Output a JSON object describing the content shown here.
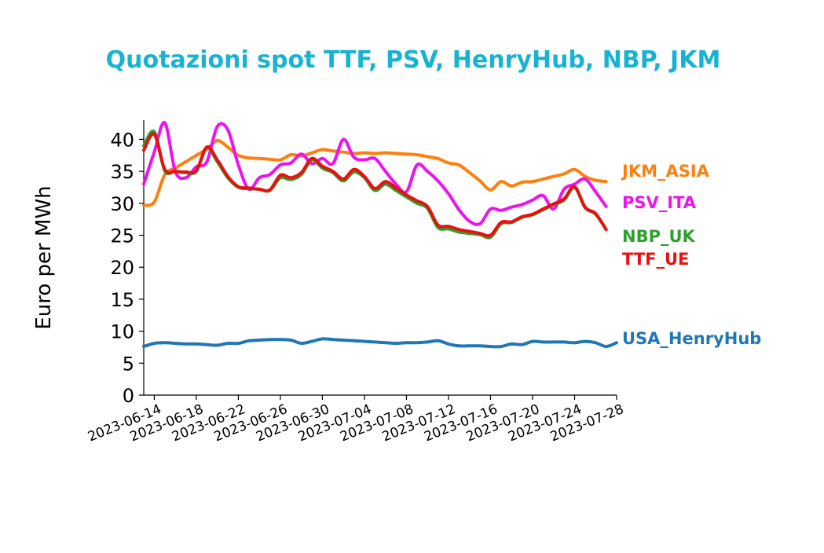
{
  "chart_data": {
    "type": "line",
    "title": "Quotazioni spot TTF, PSV, HenryHub, NBP, JKM",
    "title_color": "#17b3d1",
    "xlabel": "",
    "ylabel": "Euro per MWh",
    "ylim": [
      0,
      43
    ],
    "xlim": [
      "2023-06-13",
      "2023-07-28"
    ],
    "yticks": [
      0,
      5,
      10,
      15,
      20,
      25,
      30,
      35,
      40
    ],
    "xticks": [
      "2023-06-14",
      "2023-06-18",
      "2023-06-22",
      "2023-06-26",
      "2023-06-30",
      "2023-07-04",
      "2023-07-08",
      "2023-07-12",
      "2023-07-16",
      "2023-07-20",
      "2023-07-24",
      "2023-07-28"
    ],
    "grid": false,
    "legend": "right (labels next to series)",
    "series": [
      {
        "name": "JKM_ASIA",
        "color": "#ff7f0e",
        "points": [
          [
            "2023-06-13",
            29.7
          ],
          [
            "2023-06-14",
            30.2
          ],
          [
            "2023-06-15",
            34.5
          ],
          [
            "2023-06-16",
            35.5
          ],
          [
            "2023-06-17",
            36.5
          ],
          [
            "2023-06-18",
            37.5
          ],
          [
            "2023-06-19",
            38.5
          ],
          [
            "2023-06-20",
            39.8
          ],
          [
            "2023-06-21",
            38.8
          ],
          [
            "2023-06-22",
            37.5
          ],
          [
            "2023-06-23",
            37.1
          ],
          [
            "2023-06-24",
            37.0
          ],
          [
            "2023-06-25",
            36.9
          ],
          [
            "2023-06-26",
            36.8
          ],
          [
            "2023-06-27",
            37.6
          ],
          [
            "2023-06-28",
            37.4
          ],
          [
            "2023-06-29",
            37.9
          ],
          [
            "2023-06-30",
            38.4
          ],
          [
            "2023-07-01",
            38.2
          ],
          [
            "2023-07-02",
            38.0
          ],
          [
            "2023-07-03",
            37.8
          ],
          [
            "2023-07-04",
            37.9
          ],
          [
            "2023-07-05",
            37.8
          ],
          [
            "2023-07-06",
            37.9
          ],
          [
            "2023-07-07",
            37.8
          ],
          [
            "2023-07-08",
            37.7
          ],
          [
            "2023-07-09",
            37.6
          ],
          [
            "2023-07-10",
            37.3
          ],
          [
            "2023-07-11",
            37.0
          ],
          [
            "2023-07-12",
            36.3
          ],
          [
            "2023-07-13",
            36.0
          ],
          [
            "2023-07-14",
            34.8
          ],
          [
            "2023-07-15",
            33.5
          ],
          [
            "2023-07-16",
            32.1
          ],
          [
            "2023-07-17",
            33.4
          ],
          [
            "2023-07-18",
            32.7
          ],
          [
            "2023-07-19",
            33.3
          ],
          [
            "2023-07-20",
            33.4
          ],
          [
            "2023-07-21",
            33.8
          ],
          [
            "2023-07-22",
            34.2
          ],
          [
            "2023-07-23",
            34.6
          ],
          [
            "2023-07-24",
            35.3
          ],
          [
            "2023-07-25",
            34.2
          ],
          [
            "2023-07-26",
            33.6
          ],
          [
            "2023-07-27",
            33.4
          ]
        ]
      },
      {
        "name": "PSV_ITA",
        "color": "#ee12ee",
        "points": [
          [
            "2023-06-13",
            33.0
          ],
          [
            "2023-06-14",
            38.0
          ],
          [
            "2023-06-15",
            42.6
          ],
          [
            "2023-06-16",
            35.0
          ],
          [
            "2023-06-17",
            34.0
          ],
          [
            "2023-06-18",
            35.7
          ],
          [
            "2023-06-19",
            36.5
          ],
          [
            "2023-06-20",
            42.0
          ],
          [
            "2023-06-21",
            41.5
          ],
          [
            "2023-06-22",
            36.0
          ],
          [
            "2023-06-23",
            32.2
          ],
          [
            "2023-06-24",
            34.0
          ],
          [
            "2023-06-25",
            34.5
          ],
          [
            "2023-06-26",
            36.0
          ],
          [
            "2023-06-27",
            36.3
          ],
          [
            "2023-06-28",
            37.7
          ],
          [
            "2023-06-29",
            36.2
          ],
          [
            "2023-06-30",
            37.0
          ],
          [
            "2023-07-01",
            36.2
          ],
          [
            "2023-07-02",
            40.0
          ],
          [
            "2023-07-03",
            37.2
          ],
          [
            "2023-07-04",
            36.8
          ],
          [
            "2023-07-05",
            37.0
          ],
          [
            "2023-07-06",
            35.0
          ],
          [
            "2023-07-07",
            33.0
          ],
          [
            "2023-07-08",
            31.8
          ],
          [
            "2023-07-09",
            36.0
          ],
          [
            "2023-07-10",
            35.0
          ],
          [
            "2023-07-11",
            33.5
          ],
          [
            "2023-07-12",
            31.5
          ],
          [
            "2023-07-13",
            29.0
          ],
          [
            "2023-07-14",
            27.2
          ],
          [
            "2023-07-15",
            26.8
          ],
          [
            "2023-07-16",
            29.1
          ],
          [
            "2023-07-17",
            28.9
          ],
          [
            "2023-07-18",
            29.4
          ],
          [
            "2023-07-19",
            29.8
          ],
          [
            "2023-07-20",
            30.5
          ],
          [
            "2023-07-21",
            31.2
          ],
          [
            "2023-07-22",
            29.1
          ],
          [
            "2023-07-23",
            32.2
          ],
          [
            "2023-07-24",
            33.0
          ],
          [
            "2023-07-25",
            33.8
          ],
          [
            "2023-07-26",
            31.8
          ],
          [
            "2023-07-27",
            29.5
          ]
        ]
      },
      {
        "name": "NBP_UK",
        "color": "#2ca02c",
        "points": [
          [
            "2023-06-13",
            39.0
          ],
          [
            "2023-06-14",
            41.2
          ],
          [
            "2023-06-15",
            35.1
          ],
          [
            "2023-06-16",
            35.0
          ],
          [
            "2023-06-17",
            34.8
          ],
          [
            "2023-06-18",
            35.0
          ],
          [
            "2023-06-19",
            38.7
          ],
          [
            "2023-06-20",
            36.5
          ],
          [
            "2023-06-21",
            34.0
          ],
          [
            "2023-06-22",
            32.5
          ],
          [
            "2023-06-23",
            32.3
          ],
          [
            "2023-06-24",
            32.2
          ],
          [
            "2023-06-25",
            32.0
          ],
          [
            "2023-06-26",
            34.0
          ],
          [
            "2023-06-27",
            33.7
          ],
          [
            "2023-06-28",
            34.5
          ],
          [
            "2023-06-29",
            36.8
          ],
          [
            "2023-06-30",
            35.5
          ],
          [
            "2023-07-01",
            34.8
          ],
          [
            "2023-07-02",
            33.5
          ],
          [
            "2023-07-03",
            34.9
          ],
          [
            "2023-07-04",
            34.0
          ],
          [
            "2023-07-05",
            32.0
          ],
          [
            "2023-07-06",
            33.0
          ],
          [
            "2023-07-07",
            32.0
          ],
          [
            "2023-07-08",
            31.0
          ],
          [
            "2023-07-09",
            30.0
          ],
          [
            "2023-07-10",
            29.2
          ],
          [
            "2023-07-11",
            26.2
          ],
          [
            "2023-07-12",
            26.0
          ],
          [
            "2023-07-13",
            25.5
          ],
          [
            "2023-07-14",
            25.3
          ],
          [
            "2023-07-15",
            25.1
          ],
          [
            "2023-07-16",
            24.7
          ],
          [
            "2023-07-17",
            26.8
          ],
          [
            "2023-07-18",
            27.0
          ],
          [
            "2023-07-19",
            27.8
          ],
          [
            "2023-07-20",
            28.2
          ],
          [
            "2023-07-21",
            29.0
          ],
          [
            "2023-07-22",
            29.8
          ],
          [
            "2023-07-23",
            30.5
          ],
          [
            "2023-07-24",
            32.5
          ],
          [
            "2023-07-25",
            29.3
          ],
          [
            "2023-07-26",
            28.3
          ],
          [
            "2023-07-27",
            25.9
          ]
        ]
      },
      {
        "name": "TTF_UE",
        "color": "#e81010",
        "points": [
          [
            "2023-06-13",
            38.3
          ],
          [
            "2023-06-14",
            40.8
          ],
          [
            "2023-06-15",
            35.3
          ],
          [
            "2023-06-16",
            35.0
          ],
          [
            "2023-06-17",
            34.9
          ],
          [
            "2023-06-18",
            35.1
          ],
          [
            "2023-06-19",
            38.8
          ],
          [
            "2023-06-20",
            36.8
          ],
          [
            "2023-06-21",
            34.2
          ],
          [
            "2023-06-22",
            32.6
          ],
          [
            "2023-06-23",
            32.4
          ],
          [
            "2023-06-24",
            32.2
          ],
          [
            "2023-06-25",
            32.1
          ],
          [
            "2023-06-26",
            34.4
          ],
          [
            "2023-06-27",
            34.0
          ],
          [
            "2023-06-28",
            34.8
          ],
          [
            "2023-06-29",
            37.0
          ],
          [
            "2023-06-30",
            35.8
          ],
          [
            "2023-07-01",
            35.0
          ],
          [
            "2023-07-02",
            33.8
          ],
          [
            "2023-07-03",
            35.3
          ],
          [
            "2023-07-04",
            34.2
          ],
          [
            "2023-07-05",
            32.3
          ],
          [
            "2023-07-06",
            33.4
          ],
          [
            "2023-07-07",
            32.4
          ],
          [
            "2023-07-08",
            31.3
          ],
          [
            "2023-07-09",
            30.4
          ],
          [
            "2023-07-10",
            29.5
          ],
          [
            "2023-07-11",
            26.6
          ],
          [
            "2023-07-12",
            26.4
          ],
          [
            "2023-07-13",
            25.9
          ],
          [
            "2023-07-14",
            25.6
          ],
          [
            "2023-07-15",
            25.3
          ],
          [
            "2023-07-16",
            25.0
          ],
          [
            "2023-07-17",
            27.0
          ],
          [
            "2023-07-18",
            27.1
          ],
          [
            "2023-07-19",
            27.9
          ],
          [
            "2023-07-20",
            28.3
          ],
          [
            "2023-07-21",
            29.1
          ],
          [
            "2023-07-22",
            29.9
          ],
          [
            "2023-07-23",
            30.7
          ],
          [
            "2023-07-24",
            32.6
          ],
          [
            "2023-07-25",
            29.4
          ],
          [
            "2023-07-26",
            28.4
          ],
          [
            "2023-07-27",
            25.9
          ]
        ]
      },
      {
        "name": "USA_HenryHub",
        "color": "#1f77b4",
        "points": [
          [
            "2023-06-13",
            7.6
          ],
          [
            "2023-06-14",
            8.1
          ],
          [
            "2023-06-15",
            8.2
          ],
          [
            "2023-06-16",
            8.1
          ],
          [
            "2023-06-17",
            8.0
          ],
          [
            "2023-06-18",
            8.0
          ],
          [
            "2023-06-19",
            7.9
          ],
          [
            "2023-06-20",
            7.8
          ],
          [
            "2023-06-21",
            8.1
          ],
          [
            "2023-06-22",
            8.1
          ],
          [
            "2023-06-23",
            8.5
          ],
          [
            "2023-06-24",
            8.6
          ],
          [
            "2023-06-25",
            8.7
          ],
          [
            "2023-06-26",
            8.7
          ],
          [
            "2023-06-27",
            8.6
          ],
          [
            "2023-06-28",
            8.1
          ],
          [
            "2023-06-29",
            8.4
          ],
          [
            "2023-06-30",
            8.8
          ],
          [
            "2023-07-01",
            8.7
          ],
          [
            "2023-07-02",
            8.6
          ],
          [
            "2023-07-03",
            8.5
          ],
          [
            "2023-07-04",
            8.4
          ],
          [
            "2023-07-05",
            8.3
          ],
          [
            "2023-07-06",
            8.2
          ],
          [
            "2023-07-07",
            8.1
          ],
          [
            "2023-07-08",
            8.2
          ],
          [
            "2023-07-09",
            8.2
          ],
          [
            "2023-07-10",
            8.3
          ],
          [
            "2023-07-11",
            8.5
          ],
          [
            "2023-07-12",
            8.0
          ],
          [
            "2023-07-13",
            7.7
          ],
          [
            "2023-07-14",
            7.7
          ],
          [
            "2023-07-15",
            7.7
          ],
          [
            "2023-07-16",
            7.6
          ],
          [
            "2023-07-17",
            7.6
          ],
          [
            "2023-07-18",
            8.0
          ],
          [
            "2023-07-19",
            7.9
          ],
          [
            "2023-07-20",
            8.4
          ],
          [
            "2023-07-21",
            8.3
          ],
          [
            "2023-07-22",
            8.3
          ],
          [
            "2023-07-23",
            8.3
          ],
          [
            "2023-07-24",
            8.2
          ],
          [
            "2023-07-25",
            8.4
          ],
          [
            "2023-07-26",
            8.2
          ],
          [
            "2023-07-27",
            7.6
          ],
          [
            "2023-07-28",
            8.2
          ]
        ]
      }
    ]
  }
}
